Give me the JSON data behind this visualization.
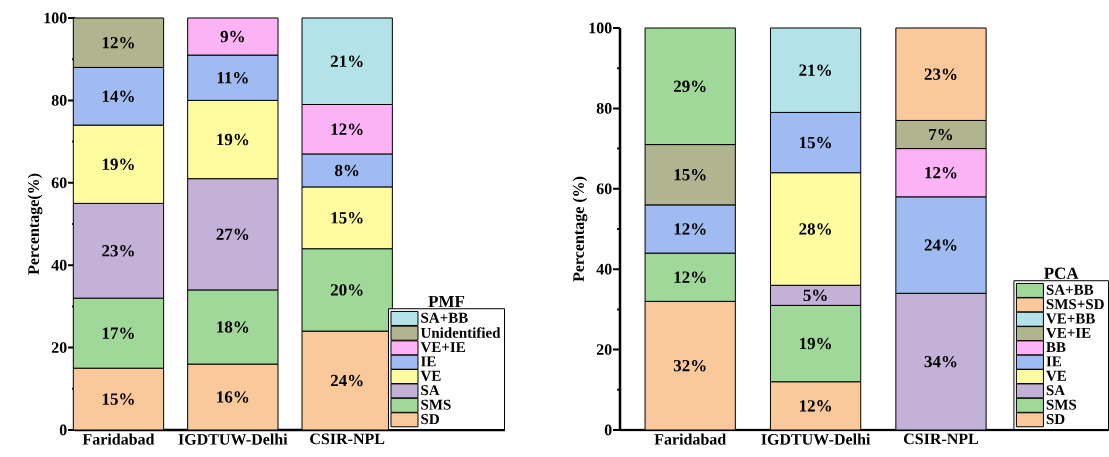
{
  "chart_data": [
    {
      "type": "bar",
      "stacked": true,
      "categories": [
        "Faridabad",
        "IGDTUW-Delhi",
        "CSIR-NPL"
      ],
      "ylabel": "Percentage(%)",
      "legend_title": "PMF",
      "legend": "bottom right",
      "ylim": [
        0,
        100
      ],
      "yticks": [
        0,
        20,
        40,
        60,
        80,
        100
      ],
      "series": [
        {
          "name": "SD",
          "color": "#f9c89b",
          "values": [
            15,
            16,
            24
          ],
          "value_labels": [
            "15%",
            "16%",
            "24%"
          ]
        },
        {
          "name": "SMS",
          "color": "#a0d89a",
          "values": [
            17,
            18,
            20
          ],
          "value_labels": [
            "17%",
            "18%",
            "20%"
          ]
        },
        {
          "name": "SA",
          "color": "#c3b1d8",
          "values": [
            23,
            27,
            null
          ],
          "value_labels": [
            "23%",
            "27%",
            null
          ]
        },
        {
          "name": "VE",
          "color": "#fffb9f",
          "values": [
            19,
            19,
            15
          ],
          "value_labels": [
            "19%",
            "19%",
            "15%"
          ]
        },
        {
          "name": "IE",
          "color": "#9fbbf2",
          "values": [
            14,
            11,
            8
          ],
          "value_labels": [
            "14%",
            "11%",
            "8%"
          ]
        },
        {
          "name": "VE+IE",
          "color": "#fcb3f5",
          "values": [
            null,
            9,
            12
          ],
          "value_labels": [
            null,
            "9%",
            "12%"
          ]
        },
        {
          "name": "Unidentified",
          "color": "#b1b58f",
          "values": [
            12,
            null,
            null
          ],
          "value_labels": [
            "12%",
            null,
            null
          ]
        },
        {
          "name": "SA+BB",
          "color": "#b3e3e8",
          "values": [
            null,
            null,
            21
          ],
          "value_labels": [
            null,
            null,
            "21%"
          ]
        }
      ]
    },
    {
      "type": "bar",
      "stacked": true,
      "categories": [
        "Faridabad",
        "IGDTUW-Delhi",
        "CSIR-NPL"
      ],
      "ylabel": "Percentage (%)",
      "legend_title": "PCA",
      "legend": "bottom right",
      "ylim": [
        0,
        100
      ],
      "yticks": [
        0,
        20,
        40,
        60,
        80,
        100
      ],
      "series": [
        {
          "name": "SD",
          "color": "#f9c89b",
          "values": [
            32,
            12,
            null
          ],
          "value_labels": [
            "32%",
            "12%",
            null
          ]
        },
        {
          "name": "SMS",
          "color": "#a0d89a",
          "values": [
            12,
            19,
            null
          ],
          "value_labels": [
            "12%",
            "19%",
            null
          ]
        },
        {
          "name": "SA",
          "color": "#c3b1d8",
          "values": [
            null,
            5,
            34
          ],
          "value_labels": [
            null,
            "5%",
            "34%"
          ]
        },
        {
          "name": "VE",
          "color": "#fffb9f",
          "values": [
            null,
            28,
            null
          ],
          "value_labels": [
            null,
            "28%",
            null
          ]
        },
        {
          "name": "IE",
          "color": "#9fbbf2",
          "values": [
            12,
            15,
            24
          ],
          "value_labels": [
            "12%",
            "15%",
            "24%"
          ]
        },
        {
          "name": "BB",
          "color": "#fcb3f5",
          "values": [
            null,
            null,
            12
          ],
          "value_labels": [
            null,
            null,
            "12%"
          ]
        },
        {
          "name": "VE+IE",
          "color": "#b1b58f",
          "values": [
            15,
            null,
            7
          ],
          "value_labels": [
            "15%",
            null,
            "7%"
          ]
        },
        {
          "name": "VE+BB",
          "color": "#b3e3e8",
          "values": [
            null,
            21,
            null
          ],
          "value_labels": [
            null,
            "21%",
            null
          ]
        },
        {
          "name": "SMS+SD",
          "color": "#f9c89b",
          "values": [
            null,
            null,
            23
          ],
          "value_labels": [
            null,
            null,
            "23%"
          ]
        },
        {
          "name": "SA+BB",
          "color": "#a0d89a",
          "values": [
            29,
            null,
            null
          ],
          "value_labels": [
            "29%",
            null,
            null
          ]
        }
      ]
    }
  ]
}
